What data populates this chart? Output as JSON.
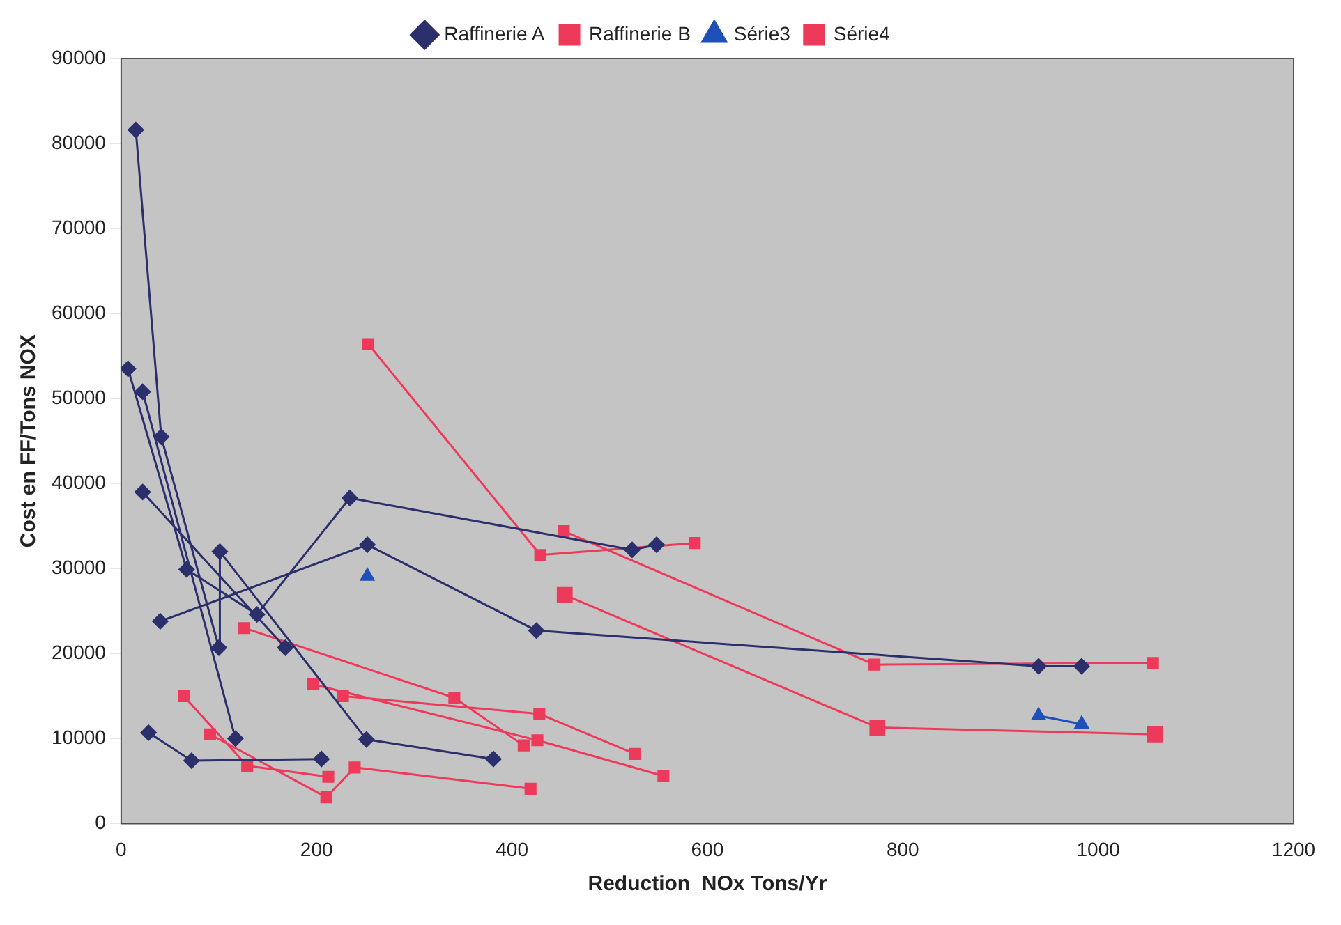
{
  "chart_data": {
    "type": "line",
    "xlabel": "Reduction  NOx Tons/Yr",
    "ylabel": "Cost en FF/Tons NOX",
    "xlim": [
      0,
      1200
    ],
    "xticks": [
      0,
      200,
      400,
      600,
      800,
      1000,
      1200
    ],
    "ylim": [
      0,
      90000
    ],
    "yticks": [
      0,
      10000,
      20000,
      30000,
      40000,
      50000,
      60000,
      70000,
      80000,
      90000
    ],
    "grid": false,
    "legend": "top",
    "series": [
      {
        "name": "Raffinerie A",
        "color": "#2b2f6b",
        "marker": "diamond",
        "x": [
          15,
          41,
          100,
          101,
          251,
          381,
          null,
          7,
          67,
          139,
          234,
          523,
          548,
          null,
          22,
          117,
          null,
          40,
          252,
          425,
          939,
          983,
          null,
          28,
          72,
          205,
          null,
          22,
          168
        ],
        "values": [
          81600,
          45500,
          20700,
          32000,
          9900,
          7600,
          null,
          53500,
          29900,
          24600,
          38300,
          32200,
          32800,
          null,
          50800,
          10000,
          null,
          23800,
          32800,
          22700,
          18500,
          18500,
          null,
          10700,
          7400,
          7600,
          null,
          39000,
          20700
        ]
      },
      {
        "name": "Raffinerie B",
        "color": "#ee3a5a",
        "marker": "square",
        "x": [
          253,
          429,
          587,
          null,
          453,
          771,
          1056,
          null,
          126,
          341,
          412,
          null,
          227,
          428,
          526,
          null,
          196,
          426,
          555,
          null,
          91,
          210,
          239,
          419,
          null,
          64,
          129,
          212
        ],
        "values": [
          56400,
          31600,
          33000,
          null,
          34400,
          18700,
          18900,
          null,
          23000,
          14800,
          9200,
          null,
          15000,
          12900,
          8200,
          null,
          16400,
          9800,
          5600,
          null,
          10500,
          3100,
          6600,
          4100,
          null,
          15000,
          6800,
          5500
        ]
      },
      {
        "name": "Série3",
        "color": "#1f4fb8",
        "marker": "triangle",
        "x": [
          252,
          null,
          939,
          983
        ],
        "values": [
          29100,
          null,
          12700,
          11700
        ]
      },
      {
        "name": "Série4",
        "color": "#ee3a5a",
        "marker": "square",
        "x": [
          454,
          774,
          1058
        ],
        "values": [
          26900,
          11300,
          10500
        ]
      }
    ]
  }
}
